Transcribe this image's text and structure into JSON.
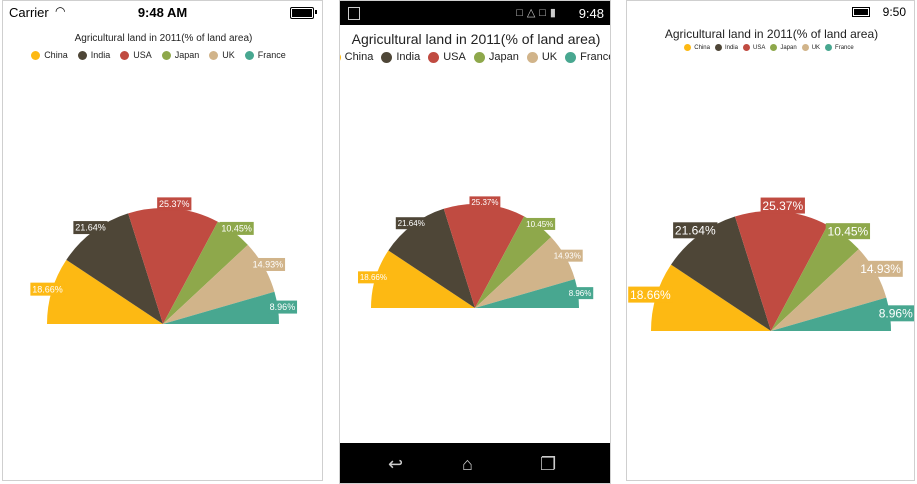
{
  "colors": {
    "China": "#FDB913",
    "India": "#4E4637",
    "USA": "#C04B41",
    "Japan": "#8EA84B",
    "UK": "#D1B48A",
    "France": "#48A790"
  },
  "ios": {
    "carrier": "Carrier",
    "time": "9:48 AM",
    "wifi_icon": "wifi-icon"
  },
  "android": {
    "time": "9:48",
    "nav": {
      "back": "back-icon",
      "home": "home-icon",
      "recent": "recent-apps-icon"
    }
  },
  "windows": {
    "time": "9:50"
  },
  "chart_data": [
    {
      "type": "pie",
      "variant": "semi-circle (180° to 360°)",
      "title": "Agricultural land in 2011(% of land area)",
      "legend_placement": "top",
      "categories": [
        "China",
        "India",
        "USA",
        "Japan",
        "UK",
        "France"
      ],
      "values": [
        18.66,
        21.64,
        25.37,
        10.45,
        14.93,
        8.96
      ],
      "labels": [
        "18.66%",
        "21.64%",
        "25.37%",
        "10.45%",
        "14.93%",
        "8.96%"
      ]
    },
    {
      "type": "pie",
      "variant": "semi-circle (180° to 360°)",
      "title": "Agricultural land in 2011(% of land area)",
      "legend_placement": "top",
      "categories": [
        "China",
        "India",
        "USA",
        "Japan",
        "UK",
        "France"
      ],
      "values": [
        18.66,
        21.64,
        25.37,
        10.45,
        14.93,
        8.96
      ],
      "labels": [
        "18.66%",
        "21.64%",
        "25.37%",
        "10.45%",
        "14.93%",
        "8.96%"
      ]
    },
    {
      "type": "pie",
      "variant": "semi-circle (180° to 360°)",
      "title": "Agricultural land in 2011(% of land area)",
      "legend_placement": "top",
      "categories": [
        "China",
        "India",
        "USA",
        "Japan",
        "UK",
        "France"
      ],
      "values": [
        18.66,
        21.64,
        25.37,
        10.45,
        14.93,
        8.96
      ],
      "labels": [
        "18.66%",
        "21.64%",
        "25.37%",
        "10.45%",
        "14.93%",
        "8.96%"
      ]
    }
  ]
}
